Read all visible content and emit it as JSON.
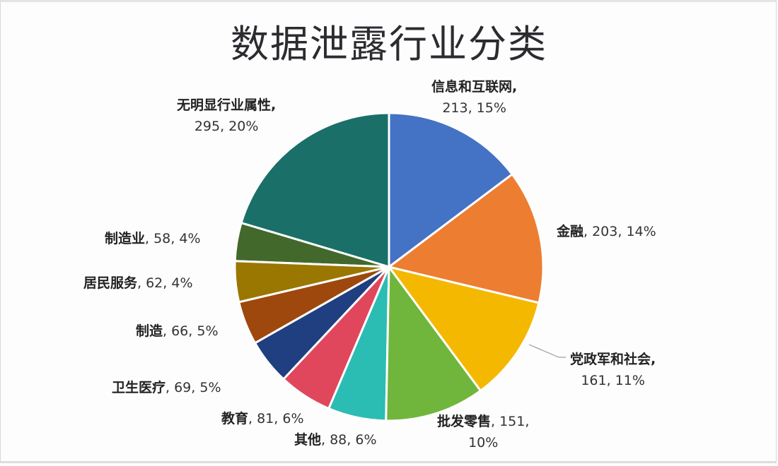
{
  "chart_data": {
    "type": "pie",
    "title": "数据泄露行业分类",
    "categories": [
      "信息和互联网",
      "金融",
      "党政军和社会",
      "批发零售",
      "其他",
      "教育",
      "卫生医疗",
      "制造",
      "居民服务",
      "制造业",
      "无明显行业属性"
    ],
    "values": [
      213,
      203,
      161,
      151,
      88,
      81,
      69,
      66,
      62,
      58,
      295
    ],
    "percentages": [
      15,
      14,
      11,
      10,
      6,
      6,
      5,
      5,
      4,
      4,
      20
    ],
    "colors": [
      "#4472c4",
      "#ed7d31",
      "#f4b800",
      "#70b63c",
      "#2bbcb3",
      "#e0475c",
      "#1f3f80",
      "#9e480e",
      "#9a7700",
      "#43682b",
      "#1a7068"
    ],
    "start_angle": "12 o'clock, clockwise",
    "legend": "none (data labels)"
  },
  "labels": {
    "l0": {
      "name": "信息和互联网,",
      "value": "213, 15%"
    },
    "l1": {
      "name": "金融",
      "value": ", 203, 14%"
    },
    "l2": {
      "name": "党政军和社会,",
      "value": "161, 11%"
    },
    "l3": {
      "name": "批发零售",
      "value": ", 151,",
      "value2": "10%"
    },
    "l4": {
      "name": "其他",
      "value": ", 88, 6%"
    },
    "l5": {
      "name": "教育",
      "value": ", 81, 6%"
    },
    "l6": {
      "name": "卫生医疗",
      "value": ", 69, 5%"
    },
    "l7": {
      "name": "制造",
      "value": ", 66, 5%"
    },
    "l8": {
      "name": "居民服务",
      "value": ", 62, 4%"
    },
    "l9": {
      "name": "制造业",
      "value": ", 58, 4%"
    },
    "l10": {
      "name": "无明显行业属性,",
      "value": "295, 20%"
    }
  }
}
